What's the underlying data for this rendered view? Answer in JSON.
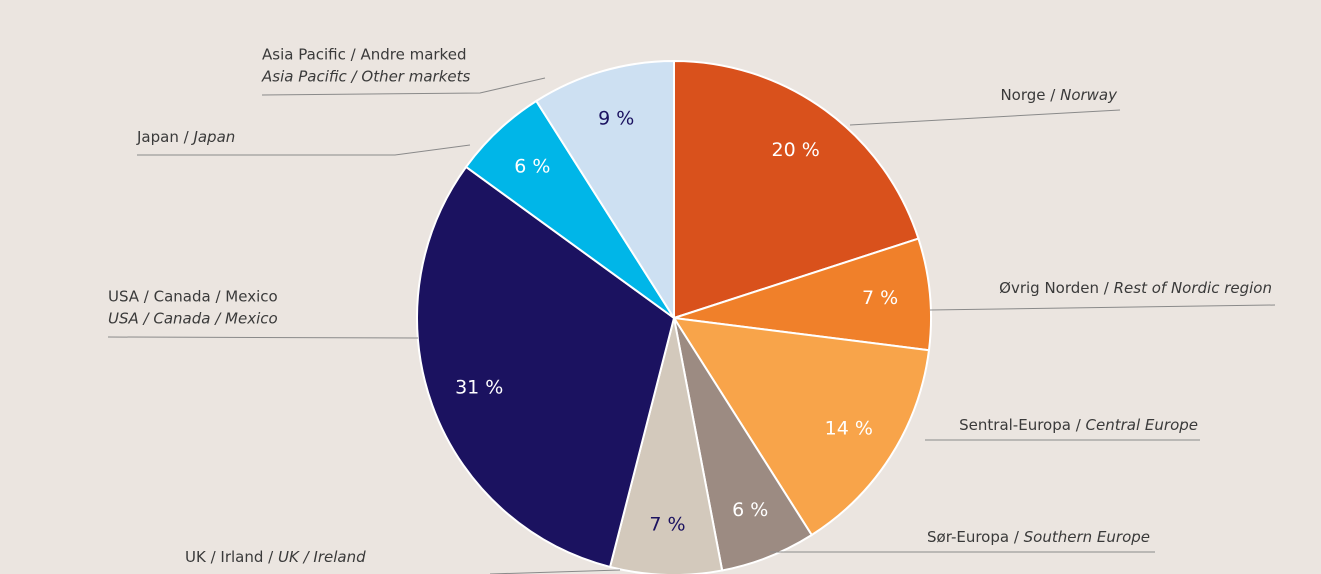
{
  "chart_data": {
    "type": "pie",
    "categories": [
      [
        "Norge / ",
        "Norway"
      ],
      [
        "Øvrig Norden / ",
        "Rest of Nordic region"
      ],
      [
        "Sentral-Europa / ",
        "Central Europe"
      ],
      [
        "Sør-Europa / ",
        "Southern Europe"
      ],
      [
        "UK / Irland / ",
        "UK / Ireland"
      ],
      [
        "USA / Canada / Mexico",
        "USA / Canada / Mexico"
      ],
      [
        "Japan / ",
        "Japan"
      ],
      [
        "Asia Pacific / Andre marked",
        "Asia Pacific / Other markets"
      ]
    ],
    "values": [
      20,
      7,
      14,
      6,
      7,
      31,
      6,
      9
    ],
    "value_labels": [
      "20 %",
      "7 %",
      "14 %",
      "6 %",
      "7 %",
      "31 %",
      "6 %",
      "9 %"
    ],
    "colors": [
      "#d9511c",
      "#f0802a",
      "#f8a44a",
      "#9c8b82",
      "#d3c9bc",
      "#1b1260",
      "#00b6e8",
      "#cde0f2"
    ],
    "label_colors": [
      "#ffffff",
      "#ffffff",
      "#ffffff",
      "#ffffff",
      "#1b1260",
      "#ffffff",
      "#ffffff",
      "#1b1260"
    ]
  }
}
